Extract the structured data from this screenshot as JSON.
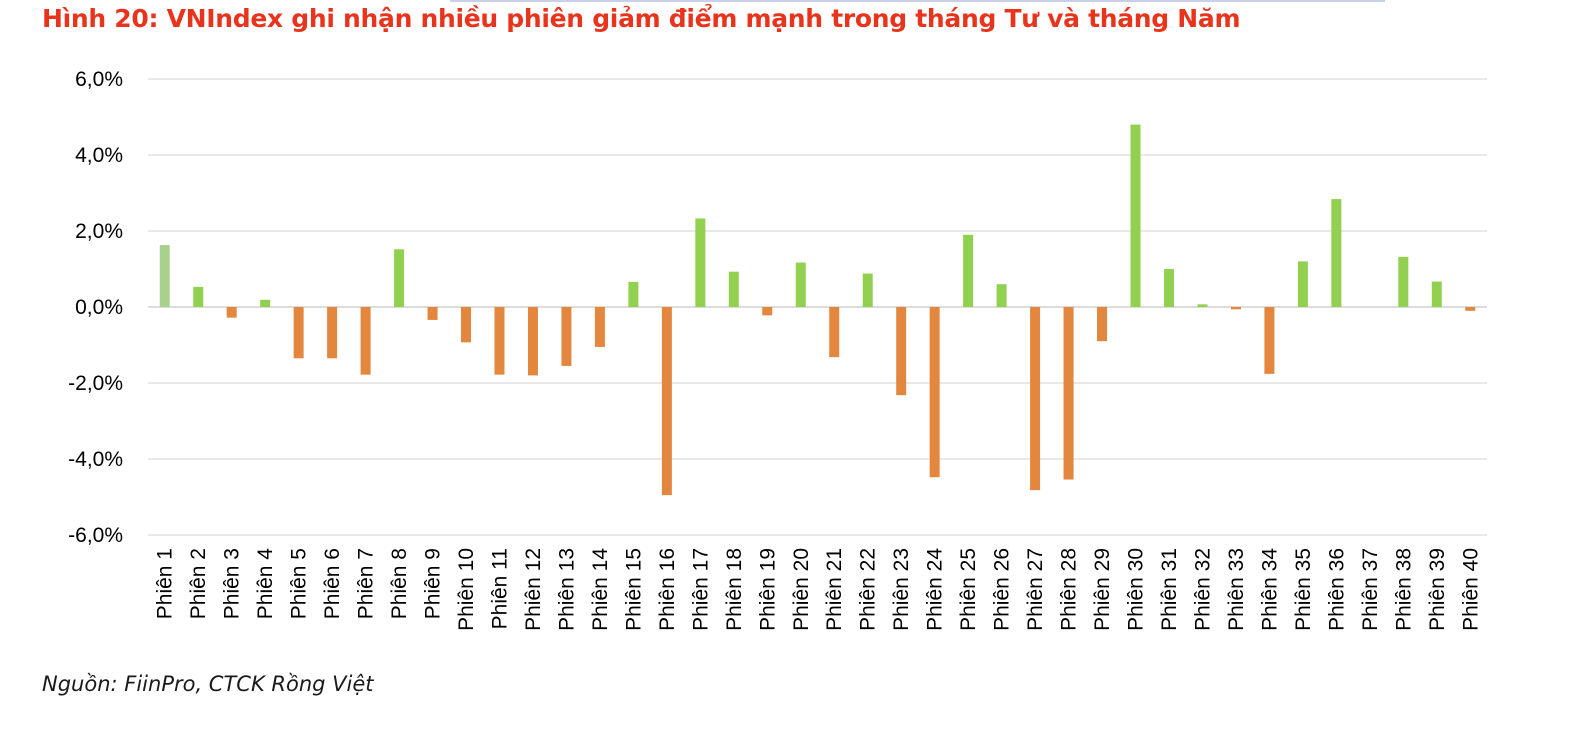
{
  "figure": {
    "title": "Hình 20: VNIndex ghi nhận nhiều phiên giảm điểm mạnh trong tháng Tư và tháng Năm",
    "title_color": "#e8341c",
    "source": "Nguồn: FiinPro, CTCK Rồng Việt"
  },
  "chart_data": {
    "type": "bar",
    "title": "",
    "xlabel": "",
    "ylabel": "",
    "ylim": [
      -6.0,
      6.0
    ],
    "yticks": [
      6.0,
      4.0,
      2.0,
      0.0,
      -2.0,
      -4.0,
      -6.0
    ],
    "ytick_labels": [
      "6,0%",
      "4,0%",
      "2,0%",
      "0,0%",
      "-2,0%",
      "-4,0%",
      "-6,0%"
    ],
    "grid": true,
    "legend": "none",
    "categories": [
      "Phiên 1",
      "Phiên 2",
      "Phiên 3",
      "Phiên 4",
      "Phiên 5",
      "Phiên 6",
      "Phiên 7",
      "Phiên 8",
      "Phiên 9",
      "Phiên 10",
      "Phiên 11",
      "Phiên 12",
      "Phiên 13",
      "Phiên 14",
      "Phiên 15",
      "Phiên 16",
      "Phiên 17",
      "Phiên 18",
      "Phiên 19",
      "Phiên 20",
      "Phiên 21",
      "Phiên 22",
      "Phiên 23",
      "Phiên 24",
      "Phiên 25",
      "Phiên 26",
      "Phiên 27",
      "Phiên 28",
      "Phiên 29",
      "Phiên 30",
      "Phiên 31",
      "Phiên 32",
      "Phiên 33",
      "Phiên 34",
      "Phiên 35",
      "Phiên 36",
      "Phiên 37",
      "Phiên 38",
      "Phiên 39",
      "Phiên 40"
    ],
    "values": [
      1.63,
      0.53,
      -0.28,
      0.19,
      -1.35,
      -1.35,
      -1.78,
      1.52,
      -0.34,
      -0.93,
      -1.78,
      -1.8,
      -1.55,
      -1.05,
      0.66,
      -4.95,
      2.33,
      0.93,
      -0.22,
      1.17,
      -1.32,
      0.88,
      -2.32,
      -4.48,
      1.9,
      0.6,
      -4.82,
      -4.54,
      -0.9,
      4.8,
      1.0,
      0.07,
      -0.06,
      -1.76,
      1.2,
      2.84,
      0.0,
      1.32,
      0.67,
      -0.1
    ],
    "colors": {
      "positive": "#92d050",
      "negative": "#e2873d",
      "first_bar": "#a9d18e",
      "grid": "#d9d9d9",
      "zero_line": "#d0d0d0"
    }
  }
}
